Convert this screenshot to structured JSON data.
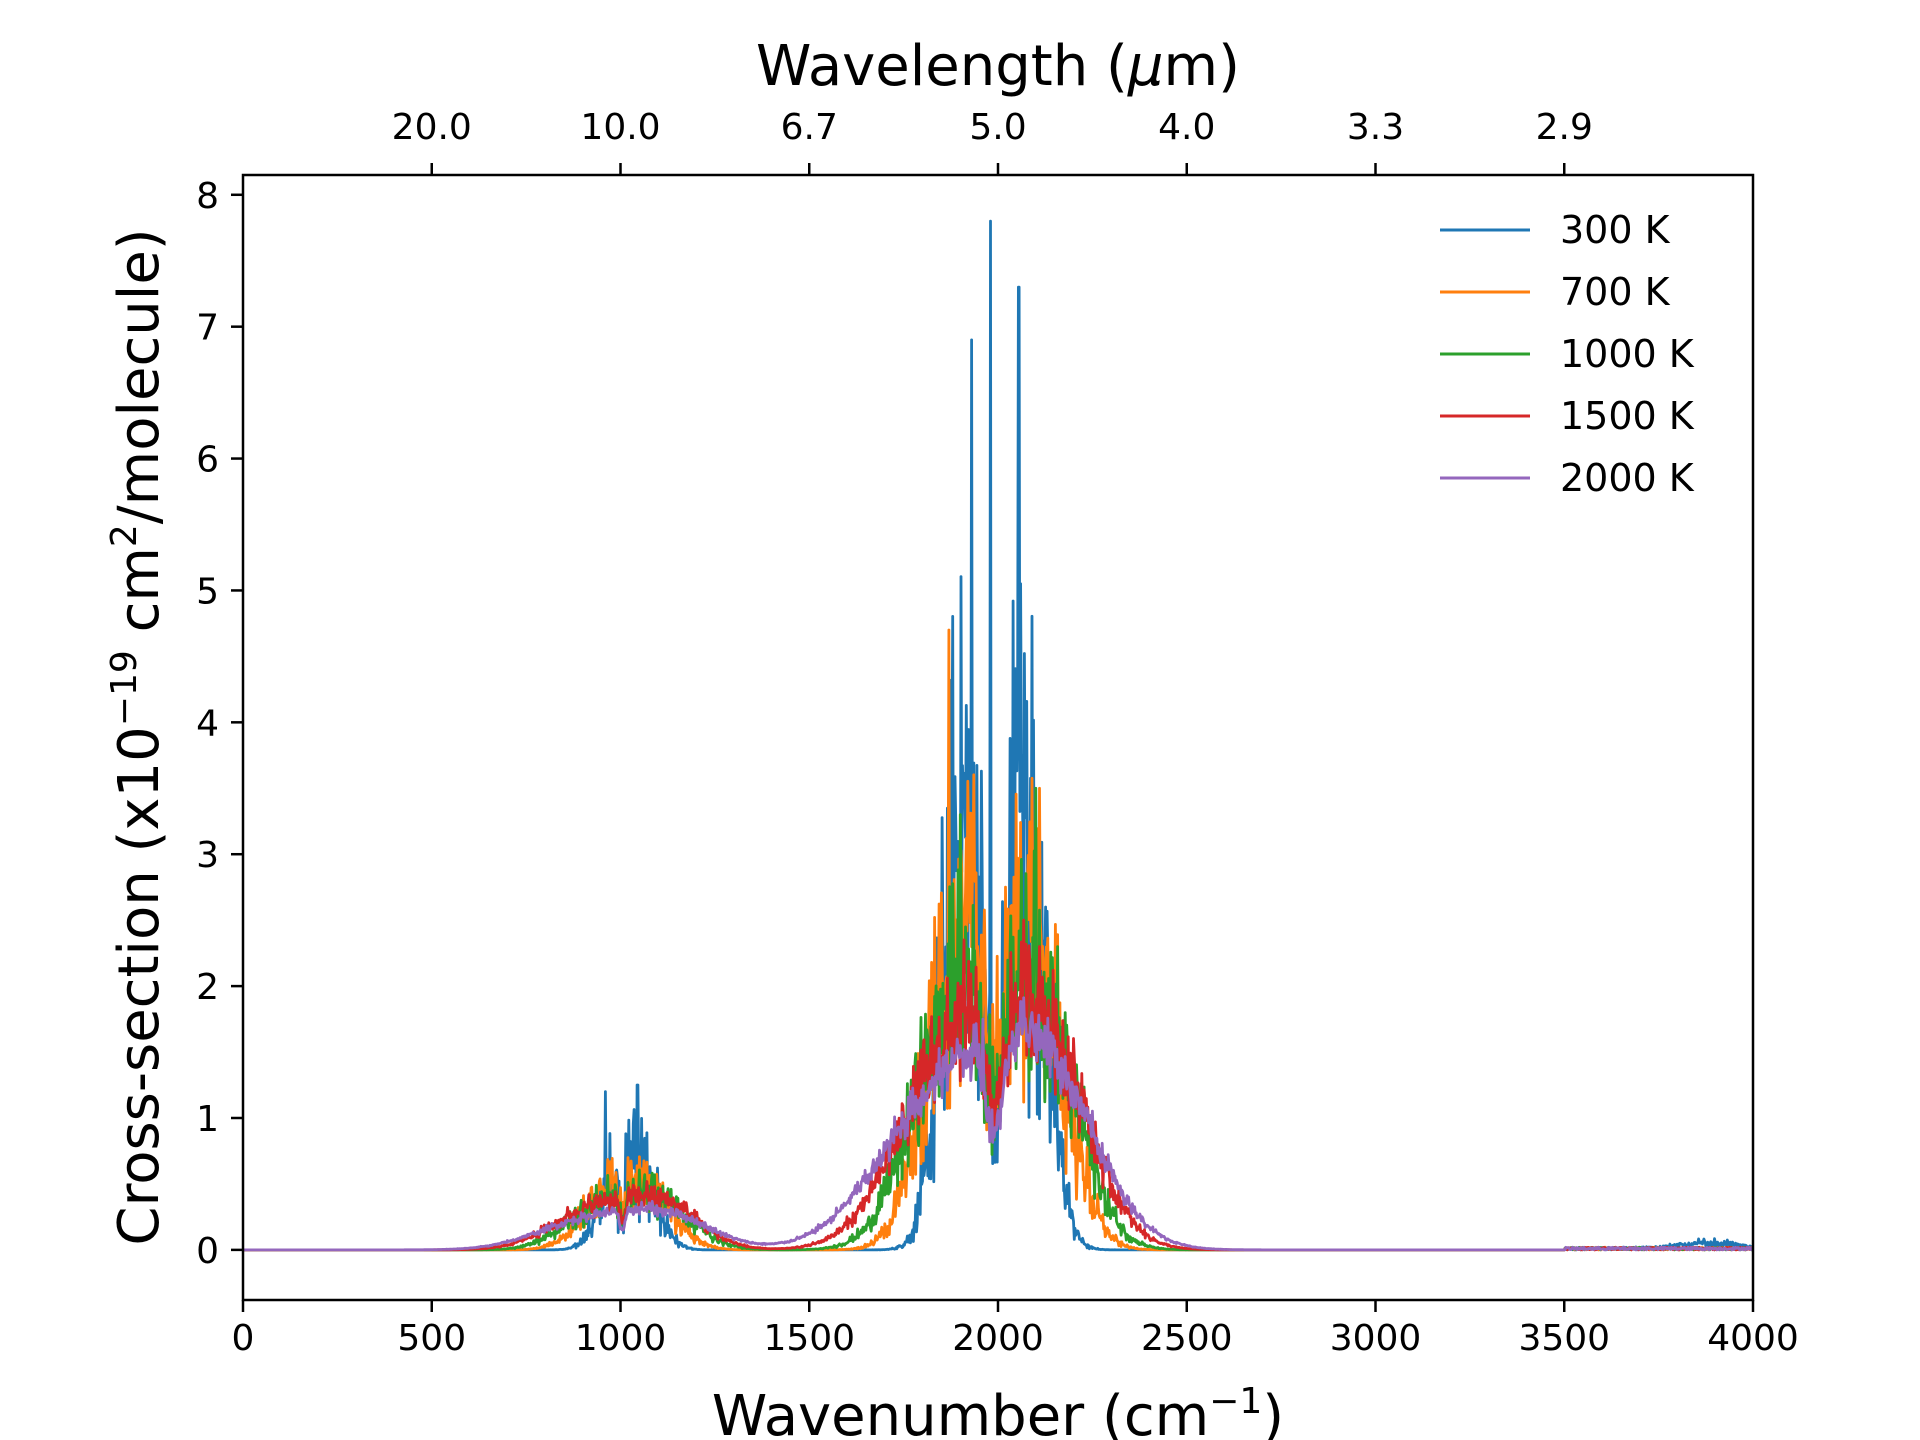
{
  "chart_data": {
    "type": "line",
    "xlabel": "Wavenumber (cm",
    "xlabel_sup": "−1",
    "xlabel_close": ")",
    "ylabel_pre": "Cross-section (x10",
    "ylabel_sup1": "−19",
    "ylabel_mid": " cm",
    "ylabel_sup2": "2",
    "ylabel_post": "/molecule)",
    "top_xlabel_pre": "Wavelength (",
    "top_xlabel_mu": "μ",
    "top_xlabel_post": "m)",
    "xlim": [
      0,
      4000
    ],
    "ylim": [
      -0.38,
      8.15
    ],
    "xticks": [
      0,
      500,
      1000,
      1500,
      2000,
      2500,
      3000,
      3500,
      4000
    ],
    "xtick_labels": [
      "0",
      "500",
      "1000",
      "1500",
      "2000",
      "2500",
      "3000",
      "3500",
      "4000"
    ],
    "yticks": [
      0,
      1,
      2,
      3,
      4,
      5,
      6,
      7,
      8
    ],
    "ytick_labels": [
      "0",
      "1",
      "2",
      "3",
      "4",
      "5",
      "6",
      "7",
      "8"
    ],
    "top_ticks_wavenumber": [
      500,
      1000,
      1500,
      2000,
      2500,
      3000,
      3500
    ],
    "top_tick_labels": [
      "20.0",
      "10.0",
      "6.7",
      "5.0",
      "4.0",
      "3.3",
      "2.9"
    ],
    "legend_position": "top-right",
    "series": [
      {
        "name": "300 K",
        "color": "#1f77b4",
        "peaks": [
          {
            "center": 985,
            "width": 45,
            "height": 0.45
          },
          {
            "center": 1060,
            "width": 45,
            "height": 0.5
          },
          {
            "center": 1910,
            "width": 55,
            "height": 3.2
          },
          {
            "center": 2070,
            "width": 55,
            "height": 3.3
          },
          {
            "center": 3880,
            "width": 80,
            "height": 0.04
          }
        ],
        "noise": 0.85,
        "spikes": [
          [
            960,
            1.2
          ],
          [
            1045,
            1.25
          ],
          [
            1980,
            7.8
          ],
          [
            2055,
            7.3
          ],
          [
            1930,
            6.9
          ]
        ]
      },
      {
        "name": "700 K",
        "color": "#ff7f0e",
        "peaks": [
          {
            "center": 960,
            "width": 70,
            "height": 0.35
          },
          {
            "center": 1080,
            "width": 70,
            "height": 0.4
          },
          {
            "center": 1900,
            "width": 85,
            "height": 2.4
          },
          {
            "center": 2090,
            "width": 85,
            "height": 2.2
          }
        ],
        "noise": 0.6,
        "spikes": [
          [
            1870,
            4.7
          ],
          [
            2110,
            3.5
          ]
        ]
      },
      {
        "name": "1000 K",
        "color": "#2ca02c",
        "peaks": [
          {
            "center": 940,
            "width": 90,
            "height": 0.3
          },
          {
            "center": 1100,
            "width": 90,
            "height": 0.35
          },
          {
            "center": 1890,
            "width": 110,
            "height": 1.9
          },
          {
            "center": 2110,
            "width": 100,
            "height": 1.8
          }
        ],
        "noise": 0.45,
        "spikes": [
          [
            1900,
            3.3
          ],
          [
            2100,
            3.5
          ]
        ]
      },
      {
        "name": "1500 K",
        "color": "#d62728",
        "peaks": [
          {
            "center": 920,
            "width": 110,
            "height": 0.28
          },
          {
            "center": 1110,
            "width": 100,
            "height": 0.33
          },
          {
            "center": 1880,
            "width": 140,
            "height": 1.45
          },
          {
            "center": 2120,
            "width": 120,
            "height": 1.5
          }
        ],
        "noise": 0.3,
        "spikes": [
          [
            1910,
            2.35
          ],
          [
            2110,
            2.3
          ]
        ]
      },
      {
        "name": "2000 K",
        "color": "#9467bd",
        "peaks": [
          {
            "center": 900,
            "width": 130,
            "height": 0.2
          },
          {
            "center": 1120,
            "width": 120,
            "height": 0.25
          },
          {
            "center": 1860,
            "width": 170,
            "height": 1.15
          },
          {
            "center": 2120,
            "width": 140,
            "height": 1.25
          }
        ],
        "noise": 0.18,
        "spikes": [
          [
            1960,
            1.75
          ],
          [
            2090,
            1.8
          ]
        ]
      }
    ]
  }
}
